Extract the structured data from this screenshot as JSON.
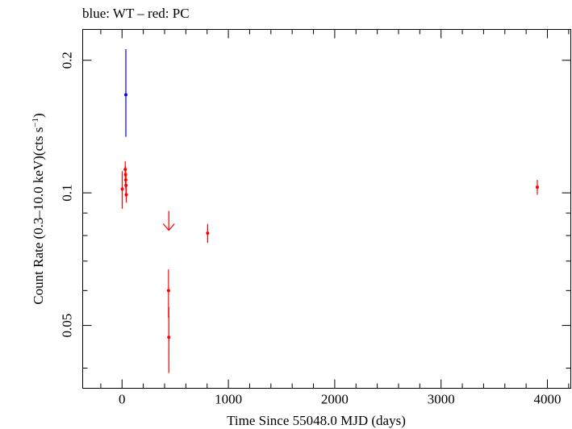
{
  "chart_data": {
    "type": "scatter",
    "title": "blue: WT – red: PC",
    "xlabel": "Time Since 55048.0 MJD (days)",
    "ylabel_main": "Count Rate (0.3–10.0 keV)(cts s",
    "ylabel_sup": "−1",
    "ylabel_end": ")",
    "xlim": [
      -370,
      4220
    ],
    "ylim": [
      0.036,
      0.235
    ],
    "yscale": "log",
    "x_ticks": [
      {
        "value": 0,
        "label": "0"
      },
      {
        "value": 1000,
        "label": "1000"
      },
      {
        "value": 2000,
        "label": "2000"
      },
      {
        "value": 3000,
        "label": "3000"
      },
      {
        "value": 4000,
        "label": "4000"
      }
    ],
    "x_minor_step": 200,
    "y_ticks": [
      {
        "value": 0.05,
        "label": "0.05"
      },
      {
        "value": 0.1,
        "label": "0.1"
      },
      {
        "value": 0.2,
        "label": "0.2"
      }
    ],
    "y_minor_ticks": [
      0.04,
      0.06,
      0.07,
      0.08,
      0.09
    ],
    "grid": false,
    "series": [
      {
        "mode": "WT",
        "color": "#0000ff",
        "points": [
          {
            "x": 36,
            "y": 0.167,
            "ylo": 0.134,
            "yhi": 0.212
          }
        ]
      },
      {
        "mode": "PC",
        "color": "#ff0000",
        "points": [
          {
            "x": 2,
            "y": 0.102,
            "ylo": 0.092,
            "yhi": 0.112
          },
          {
            "x": 30,
            "y": 0.113,
            "ylo": 0.108,
            "yhi": 0.118
          },
          {
            "x": 33,
            "y": 0.11,
            "ylo": 0.105,
            "yhi": 0.115
          },
          {
            "x": 35,
            "y": 0.107,
            "ylo": 0.102,
            "yhi": 0.112
          },
          {
            "x": 37,
            "y": 0.104,
            "ylo": 0.098,
            "yhi": 0.11
          },
          {
            "x": 40,
            "y": 0.099,
            "ylo": 0.095,
            "yhi": 0.104
          },
          {
            "x": 437,
            "y": 0.06,
            "ylo": 0.052,
            "yhi": 0.067
          },
          {
            "x": 440,
            "y": 0.047,
            "ylo": 0.039,
            "yhi": 0.055
          },
          {
            "x": 805,
            "y": 0.081,
            "ylo": 0.077,
            "yhi": 0.085
          },
          {
            "x": 3905,
            "y": 0.103,
            "ylo": 0.099,
            "yhi": 0.107
          }
        ]
      }
    ],
    "upper_limits": [
      {
        "mode": "PC",
        "color": "#ff0000",
        "x": 440,
        "y": 0.091
      }
    ]
  }
}
